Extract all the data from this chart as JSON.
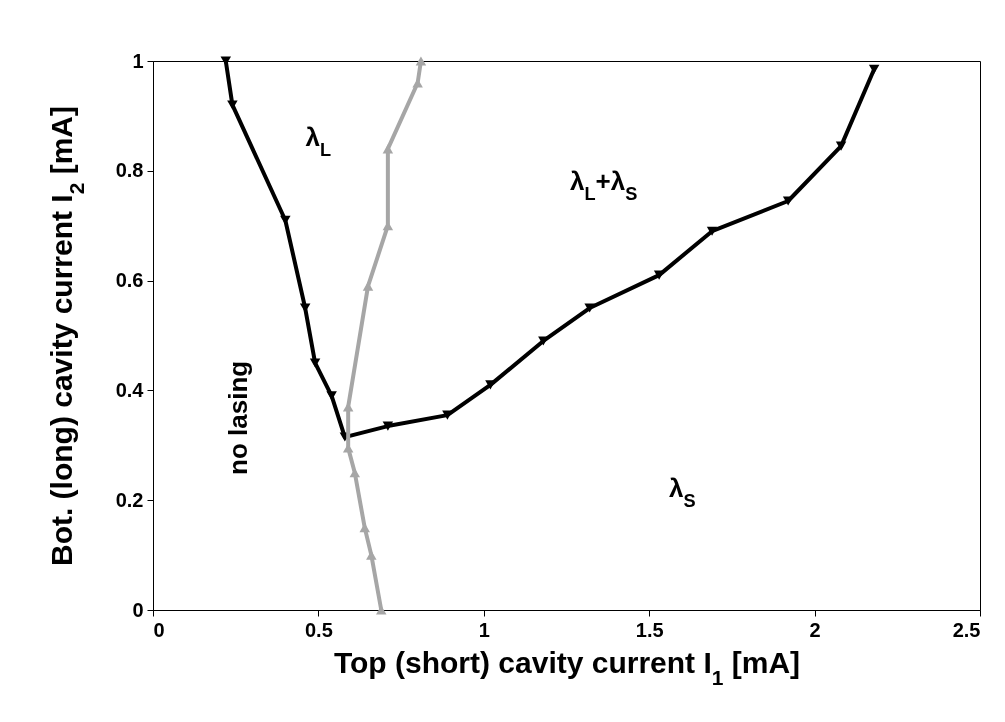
{
  "chart_data": {
    "type": "line",
    "xlabel": "Top (short) cavity current I$_{1}$ [mA]",
    "ylabel": "Bot. (long) cavity current I$_{2}$ [mA]",
    "xlim": [
      0,
      2.5
    ],
    "xticks": [
      0,
      0.5,
      1,
      1.5,
      2,
      2.5
    ],
    "ylim": [
      0,
      1
    ],
    "yticks": [
      0,
      0.2,
      0.4,
      0.6,
      0.8,
      1
    ],
    "grid": false,
    "line_style": "solid",
    "series": [
      {
        "color": "#000000",
        "marker": "triangle-down",
        "x": [
          0.22,
          0.24,
          0.4,
          0.46,
          0.49,
          0.54,
          0.58,
          0.71,
          0.89,
          1.02,
          1.18,
          1.32,
          1.53,
          1.69,
          1.92,
          2.08,
          2.18
        ],
        "values": [
          1.0,
          0.92,
          0.71,
          0.55,
          0.45,
          0.39,
          0.315,
          0.335,
          0.355,
          0.41,
          0.49,
          0.55,
          0.61,
          0.69,
          0.745,
          0.845,
          0.985
        ]
      },
      {
        "color": "#a6a6a6",
        "marker": "triangle-up",
        "x": [
          0.69,
          0.66,
          0.64,
          0.61,
          0.59,
          0.59,
          0.65,
          0.71,
          0.71,
          0.8,
          0.81
        ],
        "values": [
          0.0,
          0.1,
          0.15,
          0.25,
          0.295,
          0.37,
          0.59,
          0.7,
          0.84,
          0.96,
          1.0
        ]
      }
    ],
    "annotations": [
      "λ$_{L}$",
      "λ$_{L}$+λ$_{S}$",
      "λ$_{S}$",
      "no lasing"
    ]
  }
}
